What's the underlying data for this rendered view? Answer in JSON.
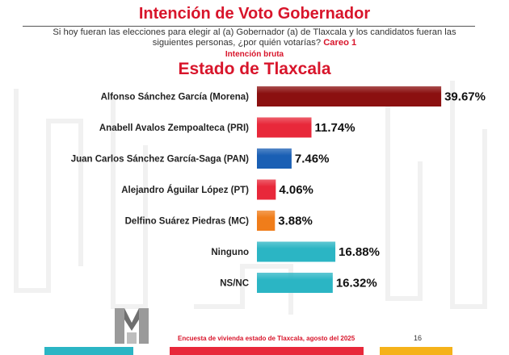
{
  "header": {
    "title": "Intención de Voto Gobernador",
    "question": "Si hoy fueran las elecciones para elegir al (a) Gobernador (a) de Tlaxcala y los candidatos fueran las siguientes personas, ¿por quién votarías?",
    "careo": "Careo 1",
    "subtitle": "Intención bruta",
    "region": "Estado de  Tlaxcala"
  },
  "footer": {
    "source": "Encuesta de vivienda estado de Tlaxcala, agosto del 2025",
    "page": "16"
  },
  "colors": {
    "accent": "#d8152b",
    "morena": "#8b1010",
    "pri": "#e8283a",
    "pan": "#1a5fb4",
    "pt": "#e8283a",
    "mc": "#f07d1a",
    "ninguno": "#2bb5c4",
    "nsnc": "#2bb5c4"
  },
  "chart_data": {
    "type": "bar",
    "orientation": "horizontal",
    "title": "Estado de  Tlaxcala",
    "categories": [
      "Alfonso Sánchez García (Morena)",
      "Anabell Avalos Zempoalteca (PRI)",
      "Juan Carlos Sánchez García-Saga (PAN)",
      "Alejandro Águilar López (PT)",
      "Delfino Suárez Piedras (MC)",
      "Ninguno",
      "NS/NC"
    ],
    "values": [
      39.67,
      11.74,
      7.46,
      4.06,
      3.88,
      16.88,
      16.32
    ],
    "value_labels": [
      "39.67%",
      "11.74%",
      "7.46%",
      "4.06%",
      "3.88%",
      "16.88%",
      "16.32%"
    ],
    "bar_colors": [
      "#8b1010",
      "#e8283a",
      "#1a5fb4",
      "#e8283a",
      "#f07d1a",
      "#2bb5c4",
      "#2bb5c4"
    ],
    "xlim": [
      0,
      40
    ],
    "grid": false,
    "legend": "none"
  }
}
